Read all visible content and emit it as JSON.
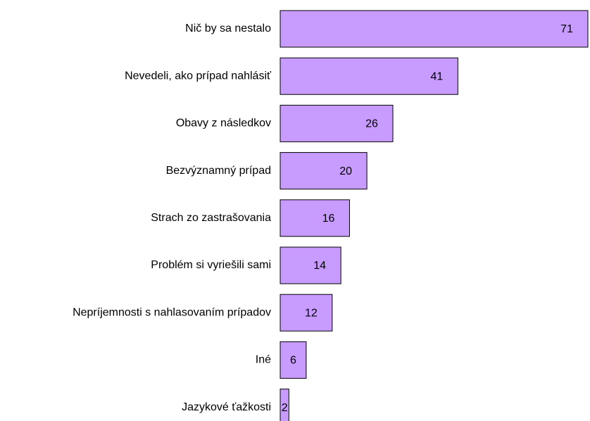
{
  "chart_data": {
    "type": "bar",
    "orientation": "horizontal",
    "categories": [
      "Nič by sa nestalo",
      "Nevedeli, ako prípad nahlásiť",
      "Obavy z následkov",
      "Bezvýznamný prípad",
      "Strach zo zastrašovania",
      "Problém si vyriešili sami",
      "Nepríjemnosti s nahlasovaním prípadov",
      "Iné",
      "Jazykové ťažkosti"
    ],
    "values": [
      71,
      41,
      26,
      20,
      16,
      14,
      12,
      6,
      2
    ],
    "color": "#c79bff"
  }
}
